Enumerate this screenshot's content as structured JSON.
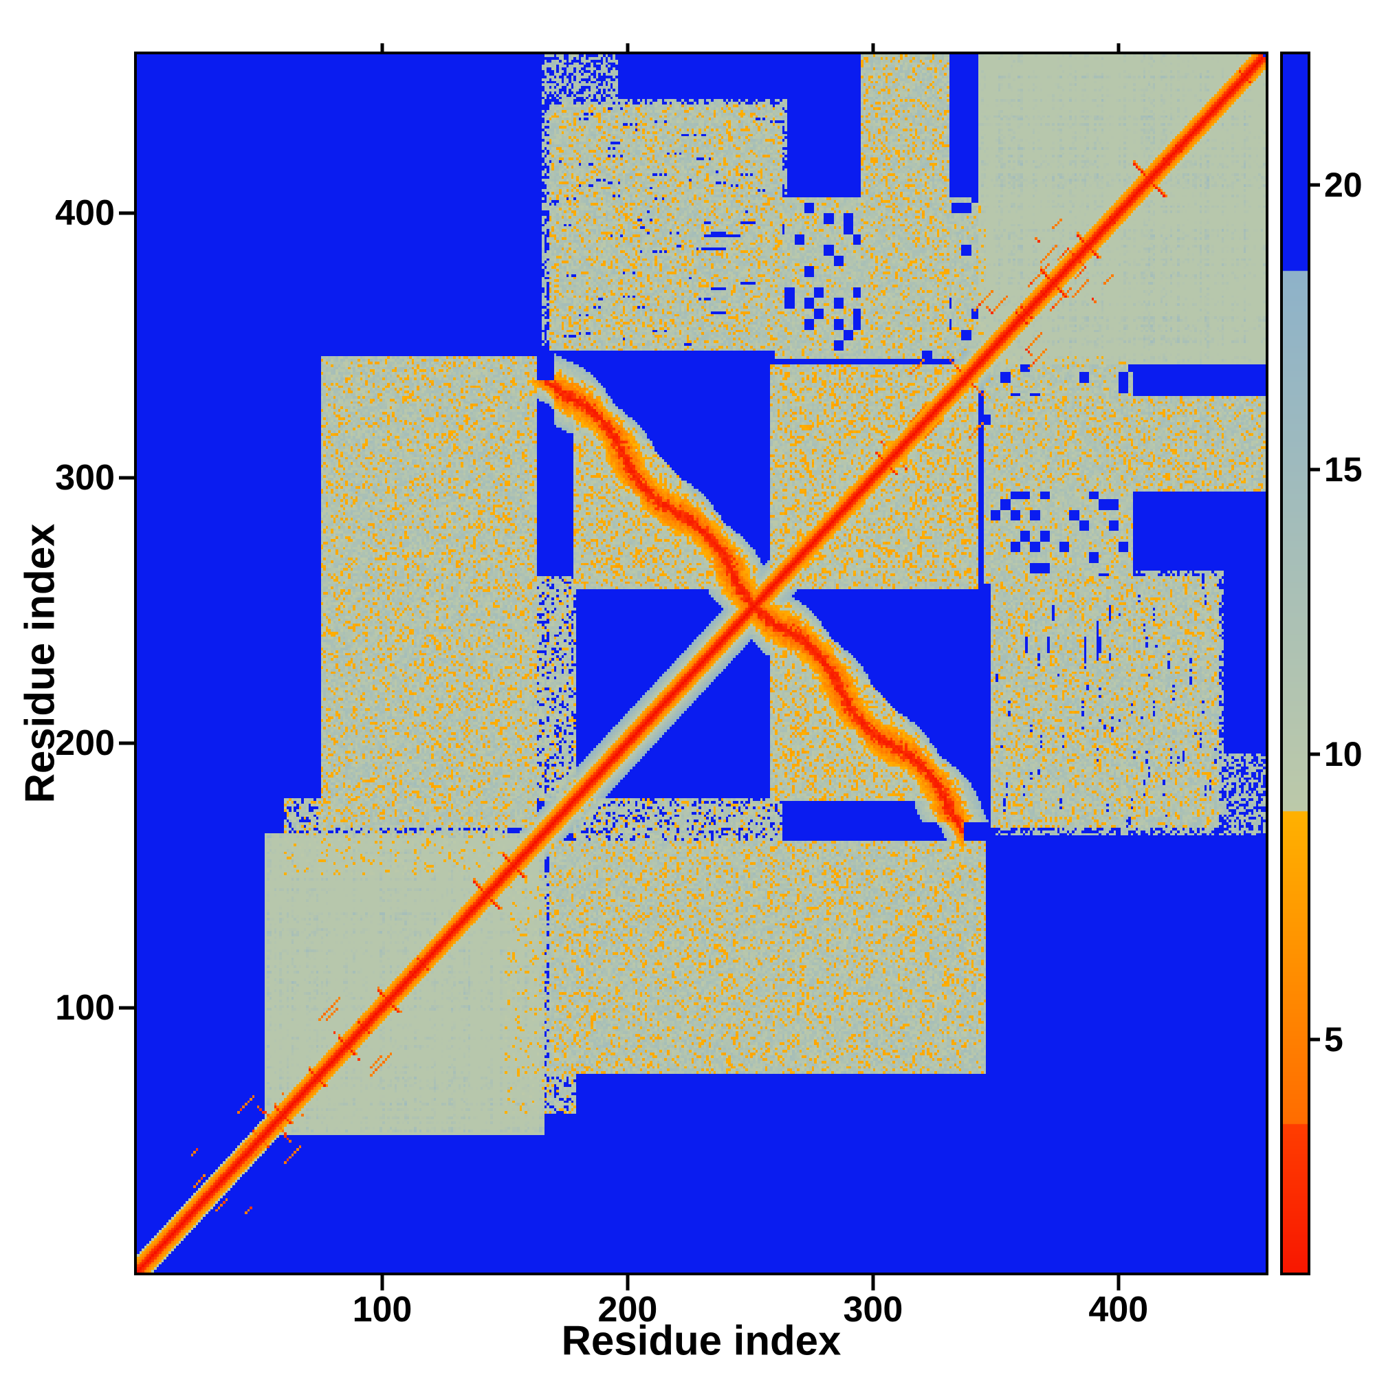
{
  "figure": {
    "background": "#ffffff"
  },
  "chart_data": {
    "type": "heatmap",
    "title": "",
    "xlabel": "Residue index",
    "ylabel": "Residue index",
    "n_residues": 460,
    "axis_range": [
      0,
      460
    ],
    "x_ticks": [
      100,
      200,
      300,
      400
    ],
    "y_ticks": [
      100,
      200,
      300,
      400
    ],
    "grid": false,
    "legend_position": "right-colorbar",
    "colorbar": {
      "min": 0.9,
      "max": 22.3,
      "ticks": [
        5,
        10,
        15,
        20
      ]
    },
    "colormap": {
      "background_value": 30,
      "stops": [
        {
          "max": 3.5,
          "c0": "#f50a00",
          "c1": "#ff3d00"
        },
        {
          "max": 9.0,
          "c0": "#ff6c00",
          "c1": "#ffb100"
        },
        {
          "max": 18.5,
          "c0": "#bcc9a9",
          "c1": "#8eb2c9"
        },
        {
          "max": 99,
          "c0": "#0a1cf0",
          "c1": "#0a1cf0"
        }
      ]
    },
    "features": {
      "seed": 7,
      "diagonal": {
        "core": 0.3,
        "slope": 1.55,
        "segments": [
          {
            "from": 0,
            "to": 52,
            "half_width": 6
          },
          {
            "from": 52,
            "to": 166,
            "half_width": 10
          },
          {
            "from": 166,
            "to": 343,
            "half_width": 13
          },
          {
            "from": 343,
            "to": 459,
            "half_width": 10
          }
        ]
      },
      "domains": [
        {
          "from": 52,
          "to": 166
        },
        {
          "from": 343,
          "to": 460
        }
      ],
      "antidiagonal": {
        "sum": 506,
        "from": 170,
        "to": 336,
        "half_width": 13,
        "wobble_amp": 4,
        "wobble_period": 7,
        "core": 3.0
      },
      "patches": [
        {
          "x": [
            75,
            162
          ],
          "y": [
            168,
            345
          ],
          "mode": "vstripes",
          "density": 0.42,
          "v": [
            11,
            17
          ]
        },
        {
          "x": [
            168,
            262
          ],
          "y": [
            348,
            440
          ],
          "mode": "hstripes",
          "density": 0.3,
          "v": [
            11,
            17
          ]
        },
        {
          "x": [
            295,
            330
          ],
          "y": [
            348,
            460
          ],
          "mode": "vstripes",
          "density": 0.45,
          "v": [
            11,
            17
          ]
        },
        {
          "x": [
            255,
            345
          ],
          "y": [
            345,
            405
          ],
          "mode": "blob",
          "density": 0.3,
          "v": [
            11,
            16
          ]
        },
        {
          "x": [
            178,
            252
          ],
          "y": [
            258,
            336
          ],
          "mode": "blob",
          "density": 0.6,
          "v": [
            10.5,
            16
          ],
          "maxsum": 520
        },
        {
          "x": [
            258,
            338
          ],
          "y": [
            264,
            342
          ],
          "mode": "blob",
          "density": 0.5,
          "v": [
            10.5,
            16
          ],
          "minsum": 524
        },
        {
          "x": [
            190,
            230
          ],
          "y": [
            348,
            410
          ],
          "mode": "speckle",
          "density": 0.2,
          "v": [
            12,
            17
          ]
        },
        {
          "x": [
            196,
            264
          ],
          "y": [
            398,
            442
          ],
          "mode": "speckle",
          "density": 0.08,
          "v": [
            12,
            16
          ]
        },
        {
          "x": [
            165,
            195
          ],
          "y": [
            350,
            460
          ],
          "mode": "speckle",
          "density": 0.06,
          "v": [
            12,
            16
          ]
        },
        {
          "x": [
            60,
            150
          ],
          "y": [
            150,
            178
          ],
          "mode": "speckle",
          "density": 0.25,
          "v": [
            11,
            16
          ]
        },
        {
          "x": [
            150,
            178
          ],
          "y": [
            178,
            262
          ],
          "mode": "speckle",
          "density": 0.3,
          "v": [
            11,
            16
          ]
        }
      ]
    }
  }
}
